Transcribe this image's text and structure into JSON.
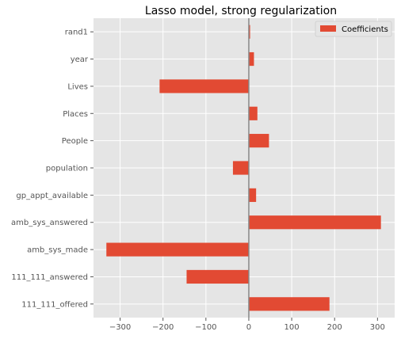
{
  "chart_data": {
    "type": "bar",
    "orientation": "horizontal",
    "title": "Lasso model, strong regularization",
    "xlabel": "",
    "ylabel": "",
    "categories": [
      "111_111_offered",
      "111_111_answered",
      "amb_sys_made",
      "amb_sys_answered",
      "gp_appt_available",
      "population",
      "People",
      "Places",
      "Lives",
      "year",
      "rand1"
    ],
    "series": [
      {
        "name": "Coefficients",
        "color": "#e24a33",
        "values": [
          188,
          -145,
          -332,
          308,
          17,
          -37,
          47,
          20,
          -208,
          12,
          3
        ]
      }
    ],
    "xlim": [
      -362,
      340
    ],
    "xticks": [
      -300,
      -200,
      -100,
      0,
      100,
      200,
      300
    ],
    "xtick_labels": [
      "−300",
      "−200",
      "−100",
      "0",
      "100",
      "200",
      "300"
    ],
    "grid": true,
    "zero_line": true,
    "legend": "top-right",
    "background": "#e5e5e5",
    "grid_color": "#ffffff"
  }
}
